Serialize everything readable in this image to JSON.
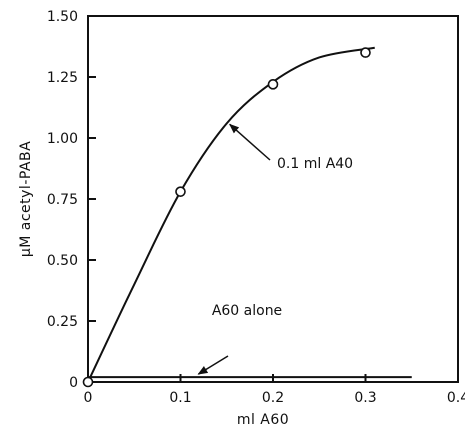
{
  "chart_data": {
    "type": "line",
    "title": "",
    "xlabel": "ml A60",
    "ylabel": "μM acetyl-PABA",
    "xlim": [
      0,
      0.4
    ],
    "ylim": [
      0,
      1.5
    ],
    "x_ticks": [
      "0",
      "0.1",
      "0.2",
      "0.3",
      "0.4"
    ],
    "y_ticks": [
      "0",
      "0.25",
      "0.50",
      "0.75",
      "1.00",
      "1.25",
      "1.50"
    ],
    "grid": false,
    "series": [
      {
        "name": "0.1 ml A40",
        "line_color": "#111111",
        "points": [
          {
            "x": 0,
            "y": 0
          },
          {
            "x": 0.1,
            "y": 0.78
          },
          {
            "x": 0.2,
            "y": 1.22
          },
          {
            "x": 0.3,
            "y": 1.35
          }
        ],
        "curve": [
          {
            "x": 0,
            "y": 0
          },
          {
            "x": 0.05,
            "y": 0.4
          },
          {
            "x": 0.1,
            "y": 0.78
          },
          {
            "x": 0.15,
            "y": 1.06
          },
          {
            "x": 0.2,
            "y": 1.23
          },
          {
            "x": 0.25,
            "y": 1.33
          },
          {
            "x": 0.31,
            "y": 1.37
          }
        ]
      },
      {
        "name": "A60 alone",
        "line_color": "#111111",
        "points": [],
        "curve": [
          {
            "x": 0,
            "y": 0.02
          },
          {
            "x": 0.35,
            "y": 0.02
          }
        ]
      }
    ],
    "annotations": [
      {
        "text": "0.1 ml A40",
        "target": {
          "x": 0.15,
          "y": 1.06
        }
      },
      {
        "text": "A60 alone",
        "target": {
          "x": 0.115,
          "y": 0.02
        }
      }
    ]
  }
}
